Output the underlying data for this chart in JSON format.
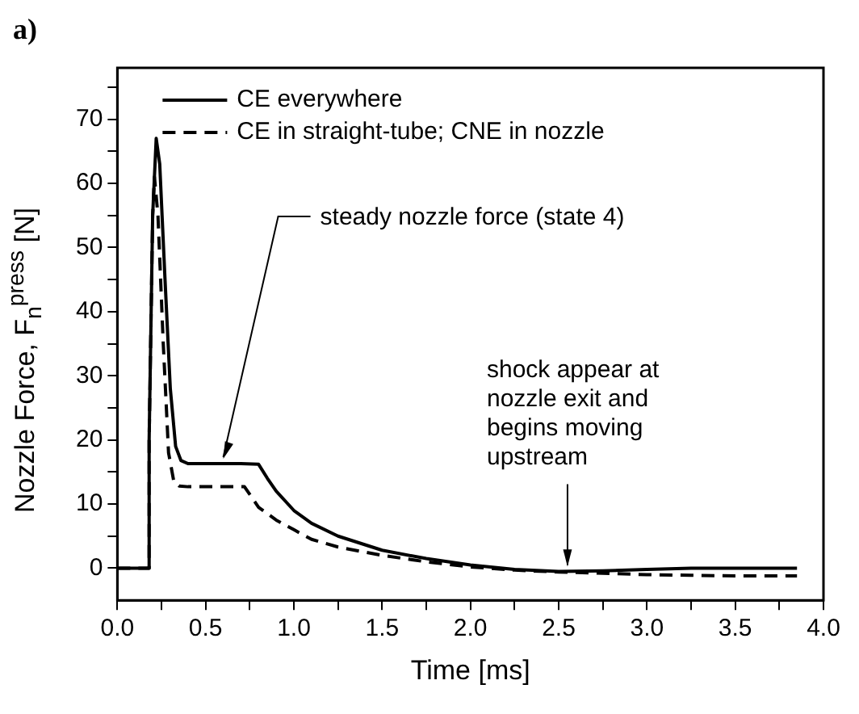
{
  "chart_data": {
    "type": "line",
    "title": "a)",
    "xlabel": "Time [ms]",
    "ylabel": "Nozzle Force, F$_{n}$$^{press}$ [N]",
    "xlim": [
      0,
      4
    ],
    "ylim": [
      -5,
      78
    ],
    "xticks": [
      {
        "value": 0,
        "label": "0.0"
      },
      {
        "value": 0.25,
        "label": null
      },
      {
        "value": 0.5,
        "label": "0.5"
      },
      {
        "value": 0.75,
        "label": null
      },
      {
        "value": 1,
        "label": "1.0"
      },
      {
        "value": 1.25,
        "label": null
      },
      {
        "value": 1.5,
        "label": "1.5"
      },
      {
        "value": 1.75,
        "label": null
      },
      {
        "value": 2,
        "label": "2.0"
      },
      {
        "value": 2.25,
        "label": null
      },
      {
        "value": 2.5,
        "label": "2.5"
      },
      {
        "value": 2.75,
        "label": null
      },
      {
        "value": 3,
        "label": "3.0"
      },
      {
        "value": 3.25,
        "label": null
      },
      {
        "value": 3.5,
        "label": "3.5"
      },
      {
        "value": 3.75,
        "label": null
      },
      {
        "value": 4,
        "label": "4.0"
      }
    ],
    "yticks": [
      0,
      {
        "value": 5,
        "label": null
      },
      10,
      {
        "value": 15,
        "label": null
      },
      20,
      {
        "value": 25,
        "label": null
      },
      30,
      {
        "value": 35,
        "label": null
      },
      40,
      {
        "value": 45,
        "label": null
      },
      50,
      {
        "value": 55,
        "label": null
      },
      60,
      {
        "value": 65,
        "label": null
      },
      70,
      {
        "value": 75,
        "label": null
      }
    ],
    "grid": false,
    "legend": "top left",
    "marker": "none",
    "series": [
      {
        "name": "CE everywhere",
        "color": "#000000",
        "line_style": "solid",
        "x": [
          0,
          0.18,
          0.18,
          0.2,
          0.22,
          0.24,
          0.27,
          0.3,
          0.33,
          0.36,
          0.4,
          0.5,
          0.6,
          0.7,
          0.8,
          0.85,
          0.9,
          1.0,
          1.1,
          1.25,
          1.5,
          1.75,
          2.0,
          2.25,
          2.5,
          2.75,
          3.0,
          3.25,
          3.5,
          3.85
        ],
        "values": [
          0,
          0,
          20,
          55,
          67,
          63,
          45,
          28,
          19,
          16.8,
          16.3,
          16.3,
          16.3,
          16.3,
          16.2,
          14,
          12,
          9,
          7,
          5,
          2.8,
          1.5,
          0.5,
          -0.2,
          -0.5,
          -0.4,
          -0.2,
          0,
          0,
          0
        ]
      },
      {
        "name": "CE in straight-tube; CNE in nozzle",
        "color": "#000000",
        "line_style": "dashed",
        "x": [
          0,
          0.18,
          0.18,
          0.2,
          0.21,
          0.23,
          0.26,
          0.29,
          0.32,
          0.35,
          0.4,
          0.5,
          0.6,
          0.72,
          0.8,
          0.9,
          1.0,
          1.1,
          1.25,
          1.5,
          1.75,
          2.0,
          2.25,
          2.5,
          2.75,
          3.0,
          3.25,
          3.5,
          3.85
        ],
        "values": [
          0,
          0,
          20,
          55,
          61,
          55,
          35,
          18,
          13.5,
          12.8,
          12.7,
          12.7,
          12.7,
          12.7,
          9.5,
          7.5,
          6,
          4.5,
          3.3,
          2,
          1,
          0.2,
          -0.3,
          -0.6,
          -0.8,
          -1,
          -1.1,
          -1.2,
          -1.2
        ]
      }
    ],
    "annotations": [
      {
        "text": "steady nozzle force (state 4)",
        "x": 0.6,
        "y": 16.3
      },
      {
        "text": "shock appear at nozzle exit and begins moving upstream",
        "x": 2.55,
        "y": -0.5
      }
    ]
  }
}
